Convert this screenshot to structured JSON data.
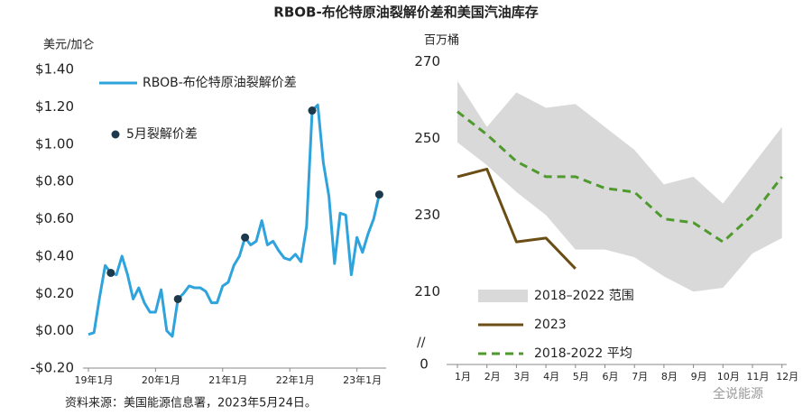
{
  "title": "RBOB-布伦特原油裂解价差和美国汽油库存",
  "footer": "资料来源：美国能源信息署，2023年5月24日。",
  "watermark": "全说能源",
  "chart_data": [
    {
      "type": "line",
      "y_label": "美元/加仑",
      "categories": [
        "19年1月",
        null,
        null,
        null,
        null,
        null,
        null,
        null,
        null,
        null,
        null,
        null,
        "20年1月",
        null,
        null,
        null,
        null,
        null,
        null,
        null,
        null,
        null,
        null,
        null,
        "21年1月",
        null,
        null,
        null,
        null,
        null,
        null,
        null,
        null,
        null,
        null,
        null,
        "22年1月",
        null,
        null,
        null,
        null,
        null,
        null,
        null,
        null,
        null,
        null,
        null,
        "23年1月",
        null,
        null,
        null,
        null
      ],
      "series": [
        {
          "name": "RBOB-布伦特原油裂解价差",
          "color": "#2ea3dc",
          "style": "line",
          "values": [
            -0.02,
            -0.01,
            0.18,
            0.35,
            0.31,
            0.3,
            0.4,
            0.3,
            0.17,
            0.23,
            0.15,
            0.1,
            0.1,
            0.22,
            0.0,
            -0.03,
            0.17,
            0.2,
            0.24,
            0.23,
            0.23,
            0.21,
            0.15,
            0.15,
            0.24,
            0.26,
            0.35,
            0.4,
            0.5,
            0.46,
            0.48,
            0.59,
            0.46,
            0.48,
            0.43,
            0.39,
            0.38,
            0.41,
            0.37,
            0.56,
            1.18,
            1.21,
            0.9,
            0.72,
            0.36,
            0.63,
            0.62,
            0.3,
            0.5,
            0.42,
            0.52,
            0.6,
            0.73
          ]
        },
        {
          "name": "5月裂解价差",
          "color": "#1d3a4c",
          "style": "points",
          "values": [
            null,
            null,
            null,
            null,
            0.31,
            null,
            null,
            null,
            null,
            null,
            null,
            null,
            null,
            null,
            null,
            null,
            0.17,
            null,
            null,
            null,
            null,
            null,
            null,
            null,
            null,
            null,
            null,
            null,
            0.5,
            null,
            null,
            null,
            null,
            null,
            null,
            null,
            null,
            null,
            null,
            null,
            1.18,
            null,
            null,
            null,
            null,
            null,
            null,
            null,
            null,
            null,
            null,
            null,
            0.73
          ]
        }
      ],
      "ylim": [
        -0.2,
        1.4
      ],
      "yticks": [
        {
          "value": 1.4,
          "label": "$1.40"
        },
        {
          "value": 1.2,
          "label": "$1.20"
        },
        {
          "value": 1.0,
          "label": "$1.00"
        },
        {
          "value": 0.8,
          "label": "$0.80"
        },
        {
          "value": 0.6,
          "label": "$0.60"
        },
        {
          "value": 0.4,
          "label": "$0.40"
        },
        {
          "value": 0.2,
          "label": "$0.20"
        },
        {
          "value": 0.0,
          "label": "$0.00"
        },
        {
          "value": -0.2,
          "label": "-$0.20"
        }
      ],
      "grid": false
    },
    {
      "type": "line",
      "y_label": "百万桶",
      "categories": [
        "1月",
        "2月",
        "3月",
        "4月",
        "5月",
        "6月",
        "7月",
        "8月",
        "9月",
        "10月",
        "11月",
        "12月"
      ],
      "series": [
        {
          "name": "2018–2022 范围",
          "color": "#d9d9d9",
          "style": "band",
          "high": [
            265,
            253,
            262,
            258,
            259,
            253,
            247,
            238,
            240,
            233,
            243,
            253
          ],
          "low": [
            249,
            243,
            236,
            230,
            221,
            221,
            219,
            214,
            210,
            211,
            220,
            224
          ]
        },
        {
          "name": "2023",
          "color": "#6b4e16",
          "style": "line",
          "values": [
            240,
            242,
            223,
            224,
            216,
            null,
            null,
            null,
            null,
            null,
            null,
            null
          ]
        },
        {
          "name": "2018-2022 平均",
          "color": "#4f9a2e",
          "style": "dashed",
          "values": [
            257,
            251,
            244,
            240,
            240,
            237,
            236,
            229,
            228,
            223,
            230,
            240
          ]
        }
      ],
      "ylim": [
        191,
        272
      ],
      "yticks": [
        270,
        250,
        230,
        210
      ],
      "break_tick": 0,
      "grid": false
    }
  ]
}
